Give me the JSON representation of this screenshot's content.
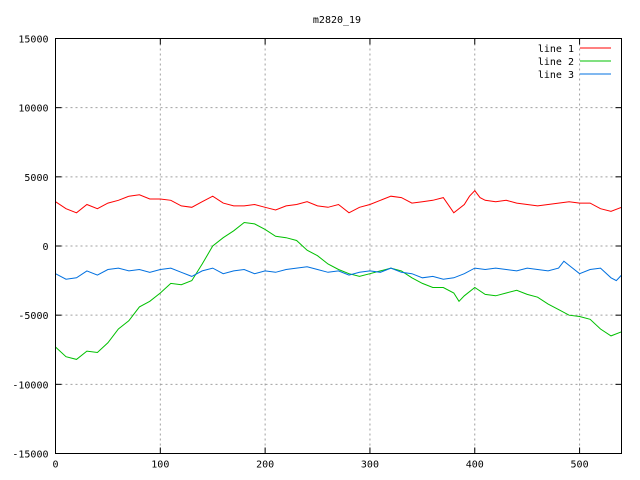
{
  "chart_data": {
    "type": "line",
    "title": "m2820_19",
    "xlabel": "",
    "ylabel": "",
    "xlim": [
      0,
      540
    ],
    "ylim": [
      -15000,
      15000
    ],
    "xticks": [
      0,
      100,
      200,
      300,
      400,
      500
    ],
    "yticks": [
      -15000,
      -10000,
      -5000,
      0,
      5000,
      10000,
      15000
    ],
    "grid": true,
    "legend_position": "top-right",
    "series": [
      {
        "name": "line 1",
        "color": "#ff0000",
        "x": [
          0,
          10,
          20,
          30,
          40,
          50,
          60,
          70,
          80,
          90,
          100,
          110,
          120,
          130,
          140,
          150,
          160,
          170,
          180,
          190,
          200,
          210,
          220,
          230,
          240,
          250,
          260,
          270,
          280,
          290,
          300,
          310,
          320,
          330,
          340,
          350,
          360,
          370,
          380,
          390,
          395,
          400,
          405,
          410,
          420,
          430,
          440,
          450,
          460,
          470,
          480,
          490,
          500,
          510,
          520,
          530,
          540
        ],
        "y": [
          3200,
          2700,
          2400,
          3000,
          2700,
          3100,
          3300,
          3600,
          3700,
          3400,
          3400,
          3300,
          2900,
          2800,
          3200,
          3600,
          3100,
          2900,
          2900,
          3000,
          2800,
          2600,
          2900,
          3000,
          3200,
          2900,
          2800,
          3000,
          2400,
          2800,
          3000,
          3300,
          3600,
          3500,
          3100,
          3200,
          3300,
          3500,
          2400,
          3000,
          3600,
          4000,
          3500,
          3300,
          3200,
          3300,
          3100,
          3000,
          2900,
          3000,
          3100,
          3200,
          3100,
          3100,
          2700,
          2500,
          2800
        ]
      },
      {
        "name": "line 2",
        "color": "#00c000",
        "x": [
          0,
          10,
          20,
          30,
          40,
          50,
          60,
          70,
          80,
          90,
          100,
          110,
          120,
          130,
          140,
          150,
          160,
          170,
          180,
          190,
          200,
          210,
          220,
          230,
          240,
          250,
          260,
          270,
          280,
          290,
          300,
          310,
          320,
          330,
          340,
          350,
          360,
          370,
          380,
          385,
          390,
          400,
          410,
          420,
          430,
          440,
          450,
          460,
          470,
          480,
          490,
          500,
          510,
          520,
          530,
          540
        ],
        "y": [
          -7300,
          -8000,
          -8200,
          -7600,
          -7700,
          -7000,
          -6000,
          -5400,
          -4400,
          -4000,
          -3400,
          -2700,
          -2800,
          -2500,
          -1300,
          0,
          600,
          1100,
          1700,
          1600,
          1200,
          700,
          600,
          400,
          -300,
          -700,
          -1300,
          -1700,
          -2000,
          -2200,
          -2000,
          -1800,
          -1600,
          -1800,
          -2300,
          -2700,
          -3000,
          -3000,
          -3400,
          -4000,
          -3600,
          -3000,
          -3500,
          -3600,
          -3400,
          -3200,
          -3500,
          -3700,
          -4200,
          -4600,
          -5000,
          -5100,
          -5300,
          -6000,
          -6500,
          -6200
        ]
      },
      {
        "name": "line 3",
        "color": "#0070e0",
        "x": [
          0,
          10,
          20,
          30,
          40,
          50,
          60,
          70,
          80,
          90,
          100,
          110,
          120,
          130,
          140,
          150,
          160,
          170,
          180,
          190,
          200,
          210,
          220,
          230,
          240,
          250,
          260,
          270,
          280,
          290,
          300,
          310,
          320,
          330,
          340,
          350,
          360,
          370,
          380,
          390,
          400,
          410,
          420,
          430,
          440,
          450,
          460,
          470,
          480,
          485,
          490,
          500,
          510,
          520,
          530,
          535,
          540
        ],
        "y": [
          -2000,
          -2400,
          -2300,
          -1800,
          -2100,
          -1700,
          -1600,
          -1800,
          -1700,
          -1900,
          -1700,
          -1600,
          -1900,
          -2200,
          -1800,
          -1600,
          -2000,
          -1800,
          -1700,
          -2000,
          -1800,
          -1900,
          -1700,
          -1600,
          -1500,
          -1700,
          -1900,
          -1800,
          -2100,
          -1900,
          -1800,
          -1900,
          -1600,
          -1900,
          -2000,
          -2300,
          -2200,
          -2400,
          -2300,
          -2000,
          -1600,
          -1700,
          -1600,
          -1700,
          -1800,
          -1600,
          -1700,
          -1800,
          -1600,
          -1100,
          -1400,
          -2000,
          -1700,
          -1600,
          -2300,
          -2500,
          -2100
        ]
      }
    ]
  }
}
